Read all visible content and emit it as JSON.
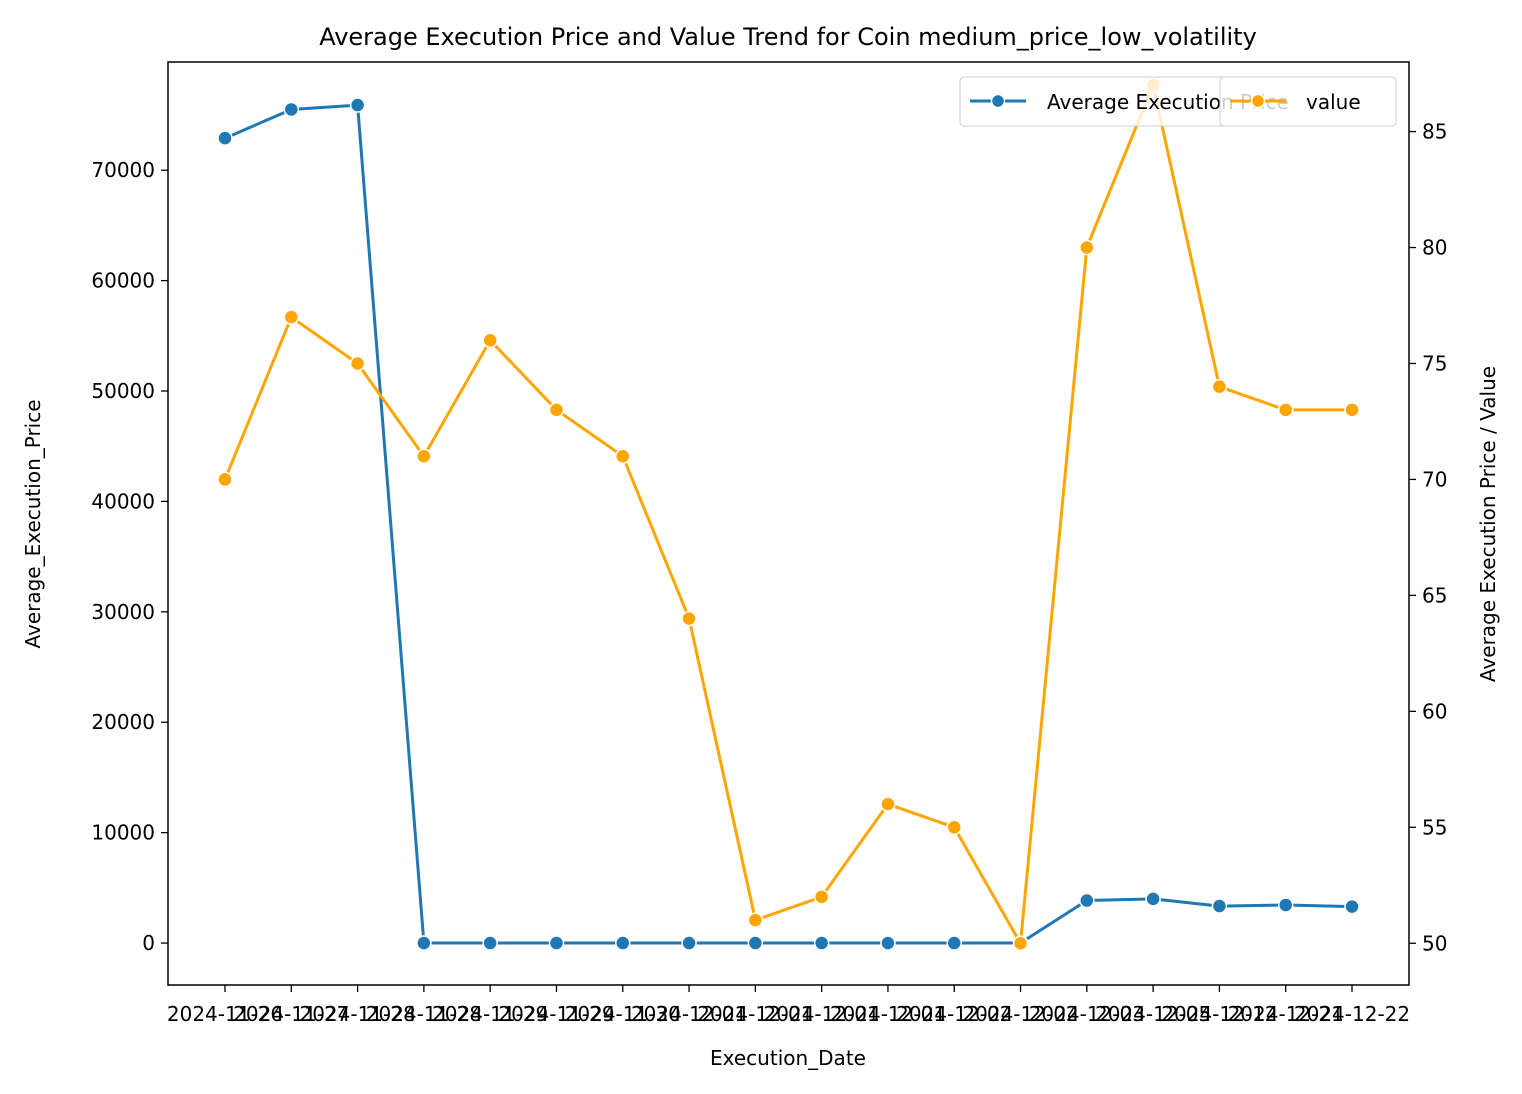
{
  "chart_data": {
    "type": "line",
    "title": "Average Execution Price and Value Trend for Coin medium_price_low_volatility",
    "xlabel": "Execution_Date",
    "ylabel_left": "Average_Execution_Price",
    "ylabel_right": "Average Execution Price / Value",
    "x_tick_labels": [
      "2024-11-26",
      "2024-11-27",
      "2024-11-28",
      "2024-11-28",
      "2024-11-29",
      "2024-11-29",
      "2024-11-30",
      "2024-12-01",
      "2024-12-01",
      "2024-12-01",
      "2024-12-01",
      "2024-12-02",
      "2024-12-02",
      "2024-12-03",
      "2024-12-05",
      "2024-12-12",
      "2024-12-21",
      "2024-12-22"
    ],
    "ylim_left": [
      -3800,
      79800
    ],
    "ylim_right": [
      48.2,
      88.0
    ],
    "yticks_left": [
      0,
      10000,
      20000,
      30000,
      40000,
      50000,
      60000,
      70000
    ],
    "yticks_right": [
      50,
      55,
      60,
      65,
      70,
      75,
      80,
      85
    ],
    "grid": false,
    "legend_left": {
      "placement": "top-right",
      "label": "Average Execution Price"
    },
    "legend_right": {
      "placement": "top-right",
      "label": "value"
    },
    "series": [
      {
        "name": "Average Execution Price",
        "axis": "left",
        "color": "#1f77b4",
        "values": [
          72900,
          75500,
          75900,
          0,
          0,
          0,
          0,
          0,
          0,
          0,
          0,
          0,
          0,
          3850,
          4000,
          3350,
          3450,
          3300
        ]
      },
      {
        "name": "value",
        "axis": "right",
        "color": "#ffa500",
        "values": [
          70,
          77,
          75,
          71,
          76,
          73,
          71,
          64,
          51,
          52,
          56,
          55,
          50,
          80,
          87,
          74,
          73,
          73
        ]
      }
    ]
  }
}
